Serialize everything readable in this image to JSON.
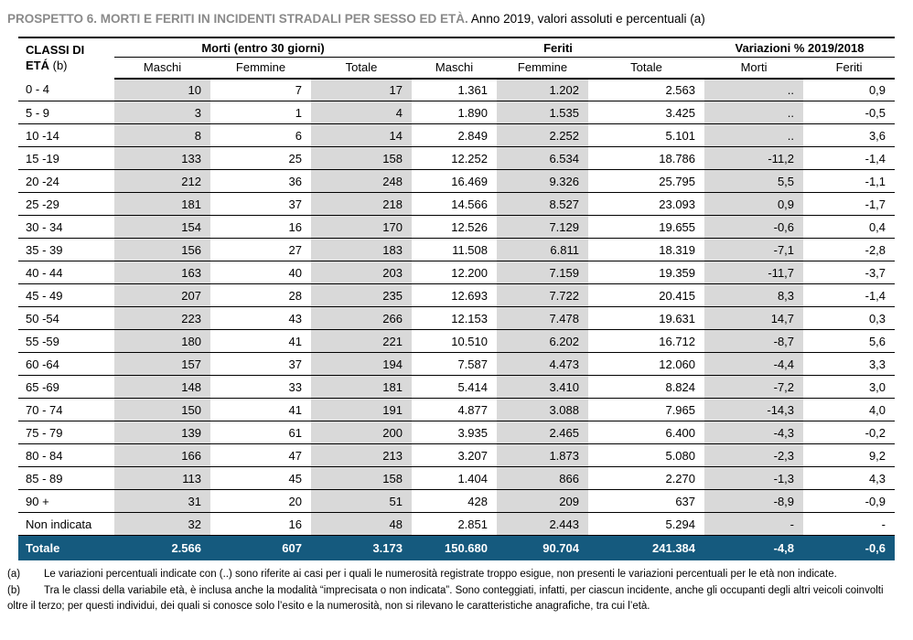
{
  "title": {
    "bold": "PROSPETTO 6. MORTI E FERITI IN INCIDENTI STRADALI PER SESSO ED ETÀ.",
    "rest": " Anno 2019, valori assoluti e percentuali (a)"
  },
  "table": {
    "row_header": {
      "line1": "CLASSI DI",
      "line2_bold": "ETÁ",
      "line2_note": " (b)"
    },
    "groups": [
      {
        "label": "Morti (entro 30 giorni)"
      },
      {
        "label": "Feriti"
      },
      {
        "label": "Variazioni % 2019/2018"
      }
    ],
    "subheaders": [
      "Maschi",
      "Femmine",
      "Totale",
      "Maschi",
      "Femmine",
      "Totale",
      "Morti",
      "Feriti"
    ],
    "rows": [
      {
        "label": "0 - 4",
        "values": [
          "10",
          "7",
          "17",
          "1.361",
          "1.202",
          "2.563",
          "..",
          "0,9"
        ]
      },
      {
        "label": "5 - 9",
        "values": [
          "3",
          "1",
          "4",
          "1.890",
          "1.535",
          "3.425",
          "..",
          "-0,5"
        ]
      },
      {
        "label": "10 -14",
        "values": [
          "8",
          "6",
          "14",
          "2.849",
          "2.252",
          "5.101",
          "..",
          "3,6"
        ]
      },
      {
        "label": "15 -19",
        "values": [
          "133",
          "25",
          "158",
          "12.252",
          "6.534",
          "18.786",
          "-11,2",
          "-1,4"
        ]
      },
      {
        "label": "20 -24",
        "values": [
          "212",
          "36",
          "248",
          "16.469",
          "9.326",
          "25.795",
          "5,5",
          "-1,1"
        ]
      },
      {
        "label": "25 -29",
        "values": [
          "181",
          "37",
          "218",
          "14.566",
          "8.527",
          "23.093",
          "0,9",
          "-1,7"
        ]
      },
      {
        "label": "30 - 34",
        "values": [
          "154",
          "16",
          "170",
          "12.526",
          "7.129",
          "19.655",
          "-0,6",
          "0,4"
        ]
      },
      {
        "label": "35 - 39",
        "values": [
          "156",
          "27",
          "183",
          "11.508",
          "6.811",
          "18.319",
          "-7,1",
          "-2,8"
        ]
      },
      {
        "label": "40 - 44",
        "values": [
          "163",
          "40",
          "203",
          "12.200",
          "7.159",
          "19.359",
          "-11,7",
          "-3,7"
        ]
      },
      {
        "label": "45 - 49",
        "values": [
          "207",
          "28",
          "235",
          "12.693",
          "7.722",
          "20.415",
          "8,3",
          "-1,4"
        ]
      },
      {
        "label": "50 -54",
        "values": [
          "223",
          "43",
          "266",
          "12.153",
          "7.478",
          "19.631",
          "14,7",
          "0,3"
        ]
      },
      {
        "label": "55 -59",
        "values": [
          "180",
          "41",
          "221",
          "10.510",
          "6.202",
          "16.712",
          "-8,7",
          "5,6"
        ]
      },
      {
        "label": "60 -64",
        "values": [
          "157",
          "37",
          "194",
          "7.587",
          "4.473",
          "12.060",
          "-4,4",
          "3,3"
        ]
      },
      {
        "label": "65 -69",
        "values": [
          "148",
          "33",
          "181",
          "5.414",
          "3.410",
          "8.824",
          "-7,2",
          "3,0"
        ]
      },
      {
        "label": "70 - 74",
        "values": [
          "150",
          "41",
          "191",
          "4.877",
          "3.088",
          "7.965",
          "-14,3",
          "4,0"
        ]
      },
      {
        "label": "75 - 79",
        "values": [
          "139",
          "61",
          "200",
          "3.935",
          "2.465",
          "6.400",
          "-4,3",
          "-0,2"
        ]
      },
      {
        "label": "80 - 84",
        "values": [
          "166",
          "47",
          "213",
          "3.207",
          "1.873",
          "5.080",
          "-2,3",
          "9,2"
        ]
      },
      {
        "label": "85 - 89",
        "values": [
          "113",
          "45",
          "158",
          "1.404",
          "866",
          "2.270",
          "-1,3",
          "4,3"
        ]
      },
      {
        "label": "90 +",
        "values": [
          "31",
          "20",
          "51",
          "428",
          "209",
          "637",
          "-8,9",
          "-0,9"
        ]
      },
      {
        "label": "Non indicata",
        "values": [
          "32",
          "16",
          "48",
          "2.851",
          "2.443",
          "5.294",
          "-",
          "-"
        ]
      }
    ],
    "total_row": {
      "label": "Totale",
      "values": [
        "2.566",
        "607",
        "3.173",
        "150.680",
        "90.704",
        "241.384",
        "-4,8",
        "-0,6"
      ]
    }
  },
  "footnotes": [
    {
      "marker": "(a)",
      "text": "Le variazioni percentuali indicate con (..) sono riferite ai casi per i quali le numerosità registrate troppo esigue, non presenti le variazioni percentuali per le età non indicate."
    },
    {
      "marker": "(b)",
      "text": "Tra le classi della variabile età, è inclusa anche la modalità “imprecisata o non indicata”. Sono conteggiati, infatti, per ciascun incidente, anche gli occupanti degli altri veicoli coinvolti oltre il terzo; per questi individui, dei quali si conosce solo l’esito e la numerosità, non si rilevano le caratteristiche anagrafiche, tra cui l’età."
    }
  ],
  "colors": {
    "accent_blue": "#155a7e",
    "shade_gray": "#d9d9d9",
    "title_gray": "#8a8a8a"
  }
}
